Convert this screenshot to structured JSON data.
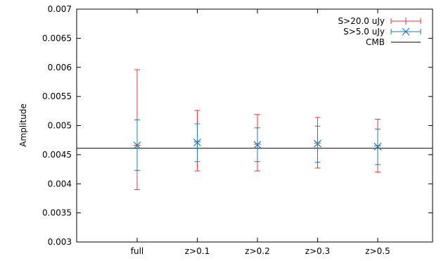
{
  "chart_data": {
    "type": "scatter",
    "title": "",
    "xlabel": "",
    "ylabel": "Amplitude",
    "categories": [
      "full",
      "z>0.1",
      "z>0.2",
      "z>0.3",
      "z>0.5"
    ],
    "ylim": [
      0.003,
      0.007
    ],
    "yticks": [
      "0.003",
      "0.0035",
      "0.004",
      "0.0045",
      "0.005",
      "0.0055",
      "0.006",
      "0.0065",
      "0.007"
    ],
    "grid": false,
    "legend_position": "top-right",
    "series": [
      {
        "name": "S>20.0 uJy",
        "color": "#e5363a",
        "marker": "plus",
        "values": [
          0.00466,
          0.00472,
          0.00468,
          0.0047,
          0.00465
        ],
        "lower": [
          0.0039,
          0.00422,
          0.00422,
          0.00427,
          0.0042
        ],
        "upper": [
          0.00596,
          0.00526,
          0.00519,
          0.00514,
          0.00511
        ]
      },
      {
        "name": "S>5.0 uJy",
        "color": "#1f78b4",
        "marker": "cross",
        "values": [
          0.00466,
          0.00471,
          0.00467,
          0.00469,
          0.00464
        ],
        "lower": [
          0.00423,
          0.00438,
          0.00438,
          0.00437,
          0.00433
        ],
        "upper": [
          0.0051,
          0.00503,
          0.00496,
          0.00499,
          0.00494
        ]
      }
    ],
    "reference_line": {
      "name": "CMB",
      "value": 0.00461,
      "color": "#000000"
    }
  }
}
